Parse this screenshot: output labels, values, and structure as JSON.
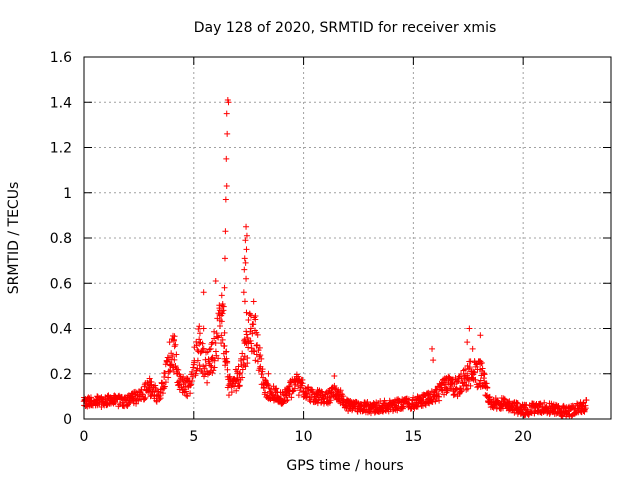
{
  "chart_data": {
    "type": "scatter",
    "title": "Day 128 of 2020, SRMTID for receiver xmis",
    "xlabel": "GPS time / hours",
    "ylabel": "SRMTID / TECUs",
    "xlim": [
      0,
      24
    ],
    "ylim": [
      0,
      1.6
    ],
    "x_ticks": [
      0,
      5,
      10,
      15,
      20
    ],
    "x_tick_labels": [
      "0",
      "5",
      "10",
      "15",
      "20"
    ],
    "y_ticks": [
      0,
      0.2,
      0.4,
      0.6,
      0.8,
      1,
      1.2,
      1.4,
      1.6
    ],
    "y_tick_labels": [
      "0",
      "0.2",
      "0.4",
      "0.6",
      "0.8",
      "1",
      "1.2",
      "1.4",
      "1.6"
    ],
    "grid": true,
    "marker": "plus",
    "series": [
      {
        "name": "xmis",
        "color": "#ff0000",
        "sampled_x_step_hours": 0.04,
        "x_range": [
          0,
          22.9
        ],
        "profile": [
          [
            0.0,
            0.07
          ],
          [
            1.0,
            0.08
          ],
          [
            2.0,
            0.08
          ],
          [
            2.5,
            0.1
          ],
          [
            3.0,
            0.14
          ],
          [
            3.4,
            0.1
          ],
          [
            3.8,
            0.22
          ],
          [
            4.1,
            0.3
          ],
          [
            4.3,
            0.16
          ],
          [
            4.8,
            0.14
          ],
          [
            5.2,
            0.33
          ],
          [
            5.6,
            0.22
          ],
          [
            6.0,
            0.33
          ],
          [
            6.3,
            0.45
          ],
          [
            6.6,
            0.15
          ],
          [
            7.0,
            0.18
          ],
          [
            7.3,
            0.28
          ],
          [
            7.7,
            0.42
          ],
          [
            8.2,
            0.14
          ],
          [
            9.0,
            0.09
          ],
          [
            9.7,
            0.16
          ],
          [
            10.2,
            0.11
          ],
          [
            11.0,
            0.09
          ],
          [
            11.5,
            0.12
          ],
          [
            12.0,
            0.06
          ],
          [
            13.0,
            0.05
          ],
          [
            14.0,
            0.06
          ],
          [
            15.0,
            0.07
          ],
          [
            16.0,
            0.1
          ],
          [
            16.5,
            0.15
          ],
          [
            17.0,
            0.14
          ],
          [
            17.6,
            0.2
          ],
          [
            18.1,
            0.2
          ],
          [
            18.5,
            0.07
          ],
          [
            19.0,
            0.07
          ],
          [
            20.0,
            0.04
          ],
          [
            21.0,
            0.05
          ],
          [
            22.0,
            0.03
          ],
          [
            22.9,
            0.06
          ]
        ],
        "spikes": [
          {
            "x": 6.55,
            "y": 1.41
          },
          {
            "x": 6.58,
            "y": 1.4
          },
          {
            "x": 6.5,
            "y": 1.35
          },
          {
            "x": 6.52,
            "y": 1.26
          },
          {
            "x": 6.48,
            "y": 1.15
          },
          {
            "x": 6.5,
            "y": 1.03
          },
          {
            "x": 6.46,
            "y": 0.97
          },
          {
            "x": 6.44,
            "y": 0.83
          },
          {
            "x": 6.42,
            "y": 0.71
          },
          {
            "x": 6.4,
            "y": 0.58
          },
          {
            "x": 6.3,
            "y": 0.5
          },
          {
            "x": 6.35,
            "y": 0.48
          },
          {
            "x": 5.45,
            "y": 0.56
          },
          {
            "x": 6.0,
            "y": 0.61
          },
          {
            "x": 5.25,
            "y": 0.41
          },
          {
            "x": 5.45,
            "y": 0.4
          },
          {
            "x": 7.38,
            "y": 0.85
          },
          {
            "x": 7.42,
            "y": 0.81
          },
          {
            "x": 7.35,
            "y": 0.79
          },
          {
            "x": 7.4,
            "y": 0.75
          },
          {
            "x": 7.32,
            "y": 0.71
          },
          {
            "x": 7.36,
            "y": 0.69
          },
          {
            "x": 7.3,
            "y": 0.66
          },
          {
            "x": 7.38,
            "y": 0.62
          },
          {
            "x": 7.28,
            "y": 0.56
          },
          {
            "x": 7.33,
            "y": 0.52
          },
          {
            "x": 7.4,
            "y": 0.47
          },
          {
            "x": 7.8,
            "y": 0.44
          },
          {
            "x": 7.6,
            "y": 0.4
          },
          {
            "x": 15.85,
            "y": 0.31
          },
          {
            "x": 15.9,
            "y": 0.26
          },
          {
            "x": 17.55,
            "y": 0.4
          },
          {
            "x": 18.05,
            "y": 0.37
          },
          {
            "x": 17.45,
            "y": 0.34
          },
          {
            "x": 17.7,
            "y": 0.31
          },
          {
            "x": 11.4,
            "y": 0.19
          },
          {
            "x": 3.9,
            "y": 0.34
          },
          {
            "x": 4.1,
            "y": 0.35
          },
          {
            "x": 8.4,
            "y": 0.2
          }
        ]
      }
    ]
  }
}
